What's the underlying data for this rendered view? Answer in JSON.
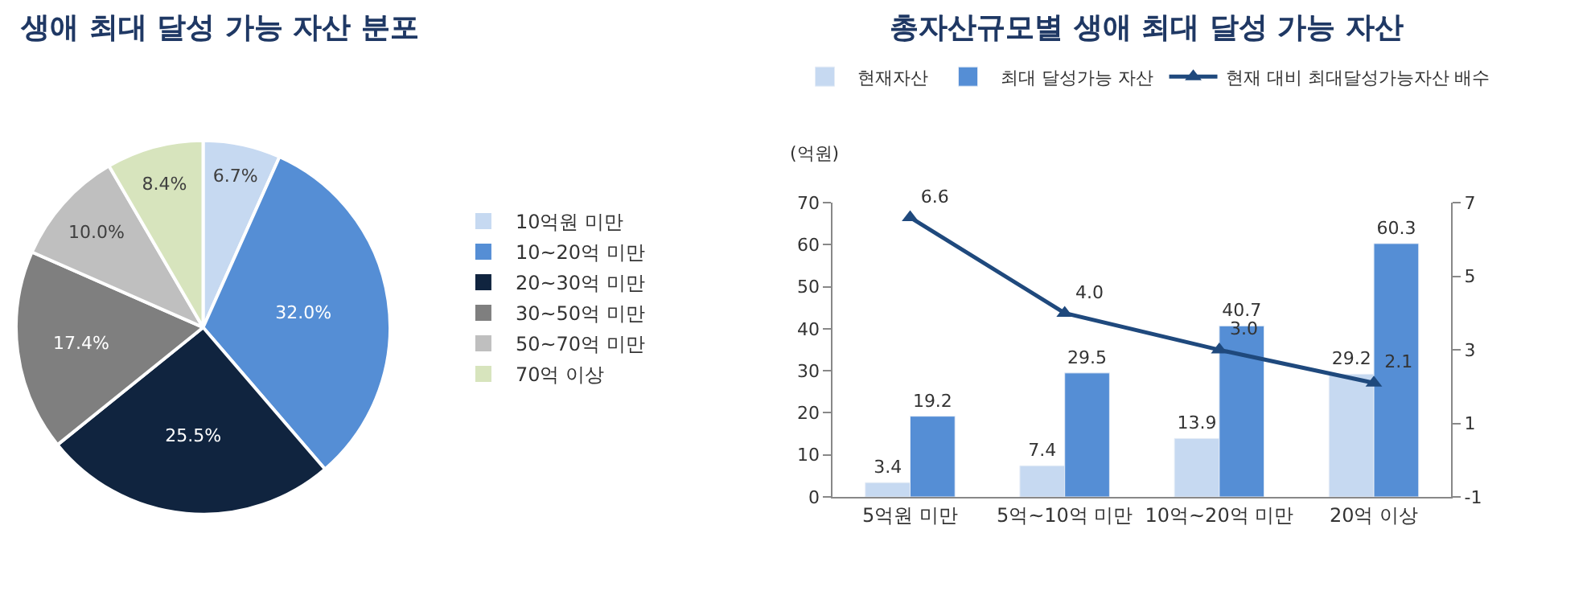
{
  "chart_data": [
    {
      "type": "pie",
      "title": "생애 최대 달성 가능 자산 분포",
      "categories": [
        "10억원 미만",
        "10~20억 미만",
        "20~30억 미만",
        "30~50억 미만",
        "50~70억 미만",
        "70억 이상"
      ],
      "values": [
        6.7,
        32.0,
        25.5,
        17.4,
        10.0,
        8.4
      ],
      "colors": [
        "#c6d9f1",
        "#558ed5",
        "#10243f",
        "#7f7f7f",
        "#bfbfbf",
        "#d7e4bd"
      ],
      "value_labels": [
        "6.7%",
        "32.0%",
        "25.5%",
        "17.4%",
        "10.0%",
        "8.4%"
      ],
      "legend": "right"
    },
    {
      "type": "bar",
      "title": "총자산규모별 생애 최대 달성 가능 자산",
      "ylabel": "(억원)",
      "categories": [
        "5억원 미만",
        "5억~10억 미만",
        "10억~20억 미만",
        "20억 이상"
      ],
      "series": [
        {
          "name": "현재자산",
          "color": "#c6d9f1",
          "values": [
            3.4,
            7.4,
            13.9,
            29.2
          ],
          "value_labels": [
            "3.4",
            "7.4",
            "13.9",
            "29.2"
          ]
        },
        {
          "name": "최대 달성가능 자산",
          "color": "#558ed5",
          "values": [
            19.2,
            29.5,
            40.7,
            60.3
          ],
          "value_labels": [
            "19.2",
            "29.5",
            "40.7",
            "60.3"
          ]
        },
        {
          "name": "현재 대비 최대달성가능자산 배수",
          "type": "line",
          "axis": "y2",
          "color": "#1f497d",
          "marker": "triangle",
          "values": [
            6.6,
            4.0,
            3.0,
            2.1
          ],
          "value_labels": [
            "6.6",
            "4.0",
            "3.0",
            "2.1"
          ]
        }
      ],
      "ylim": [
        0,
        70
      ],
      "yticks": [
        0,
        10,
        20,
        30,
        40,
        50,
        60,
        70
      ],
      "y2lim": [
        -1,
        7
      ],
      "y2ticks": [
        -1,
        1,
        3,
        5,
        7
      ],
      "legend": "top"
    }
  ]
}
